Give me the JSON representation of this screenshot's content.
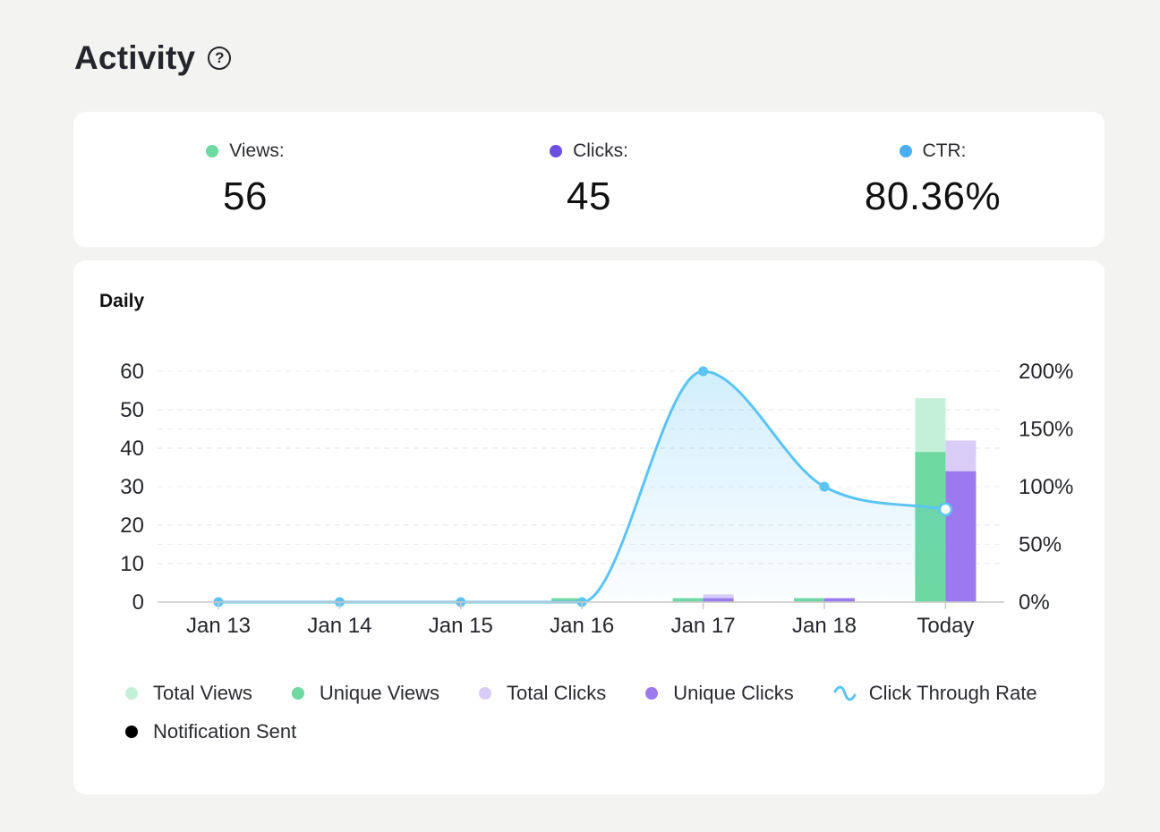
{
  "header": {
    "title": "Activity",
    "help_glyph": "?"
  },
  "summary": {
    "views": {
      "label": "Views:",
      "value": "56",
      "color": "#6ed9a0"
    },
    "clicks": {
      "label": "Clicks:",
      "value": "45",
      "color": "#6b4fe0"
    },
    "ctr": {
      "label": "CTR:",
      "value": "80.36%",
      "color": "#4aaef0"
    }
  },
  "chart_section": {
    "title": "Daily"
  },
  "chart_data": {
    "type": "bar",
    "categories": [
      "Jan 13",
      "Jan 14",
      "Jan 15",
      "Jan 16",
      "Jan 17",
      "Jan 18",
      "Today"
    ],
    "left_axis": {
      "ticks": [
        "0",
        "10",
        "20",
        "30",
        "40",
        "50",
        "60"
      ],
      "ylim": [
        0,
        60
      ]
    },
    "right_axis": {
      "ticks": [
        "0%",
        "50%",
        "100%",
        "150%",
        "200%"
      ],
      "ylim": [
        0,
        200
      ]
    },
    "series": [
      {
        "name": "Total Views",
        "color": "#c4efd9",
        "values": [
          0,
          0,
          0,
          1,
          1,
          1,
          53
        ]
      },
      {
        "name": "Unique Views",
        "color": "#6ed9a0",
        "values": [
          0,
          0,
          0,
          1,
          1,
          1,
          39
        ]
      },
      {
        "name": "Total Clicks",
        "color": "#d9cdf8",
        "values": [
          0,
          0,
          0,
          0,
          2,
          1,
          42
        ]
      },
      {
        "name": "Unique Clicks",
        "color": "#9b7af0",
        "values": [
          0,
          0,
          0,
          0,
          1,
          1,
          34
        ]
      },
      {
        "name": "Click Through Rate",
        "color": "#5cc4f5",
        "values": [
          0,
          0,
          0,
          0,
          200,
          100,
          80.36
        ]
      }
    ],
    "notification_series": {
      "name": "Notification Sent",
      "color": "#000000"
    }
  },
  "legend": [
    {
      "label": "Total Views",
      "color": "#c4efd9",
      "kind": "dot"
    },
    {
      "label": "Unique Views",
      "color": "#6ed9a0",
      "kind": "dot"
    },
    {
      "label": "Total Clicks",
      "color": "#d9cdf8",
      "kind": "dot"
    },
    {
      "label": "Unique Clicks",
      "color": "#9b7af0",
      "kind": "dot"
    },
    {
      "label": "Click Through Rate",
      "color": "#5cc4f5",
      "kind": "wave"
    },
    {
      "label": "Notification Sent",
      "color": "#000000",
      "kind": "dot"
    }
  ]
}
